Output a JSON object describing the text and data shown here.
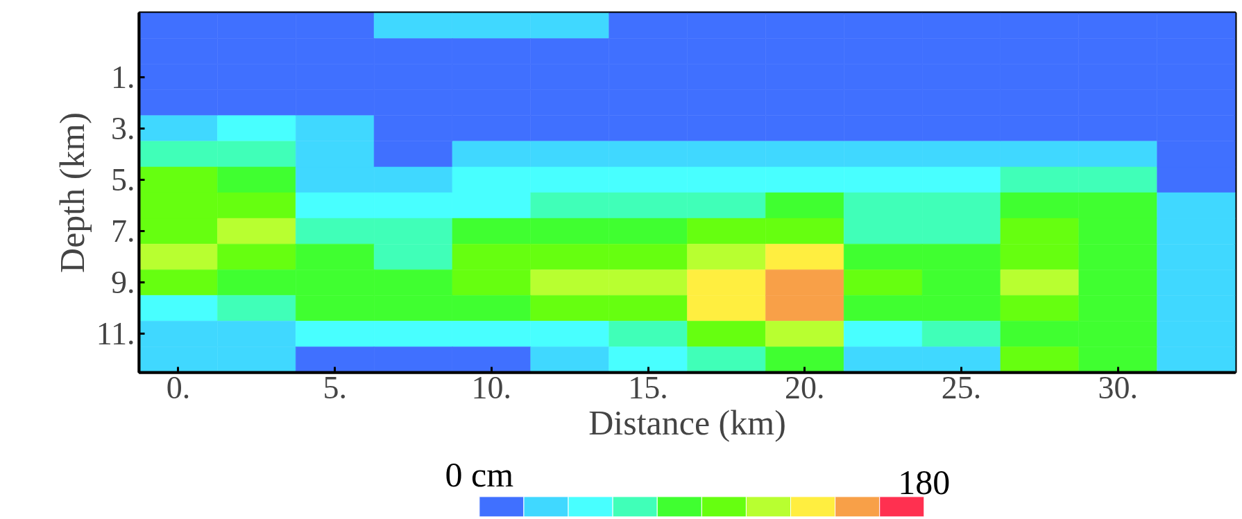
{
  "chart_data": {
    "type": "heatmap",
    "xlabel": "Distance (km)",
    "ylabel": "Depth (km)",
    "categories": [
      "0.",
      null,
      "5.",
      null,
      "10.",
      null,
      "15.",
      null,
      "20.",
      null,
      "25.",
      null,
      "30.",
      null
    ],
    "y_categories": [
      null,
      null,
      "1.",
      null,
      "3.",
      null,
      "5.",
      null,
      "7.",
      null,
      "9.",
      null,
      "11.",
      null
    ],
    "cells": [
      [
        9,
        9,
        9,
        27,
        27,
        27,
        9,
        9,
        9,
        9,
        9,
        9,
        9,
        9
      ],
      [
        9,
        9,
        9,
        9,
        9,
        9,
        9,
        9,
        9,
        9,
        9,
        9,
        9,
        9
      ],
      [
        9,
        9,
        9,
        9,
        9,
        9,
        9,
        9,
        9,
        9,
        9,
        9,
        9,
        9
      ],
      [
        9,
        9,
        9,
        9,
        9,
        9,
        9,
        9,
        9,
        9,
        9,
        9,
        9,
        9
      ],
      [
        27,
        45,
        27,
        9,
        9,
        9,
        9,
        9,
        9,
        9,
        9,
        9,
        9,
        9
      ],
      [
        63,
        63,
        27,
        9,
        27,
        27,
        27,
        27,
        27,
        27,
        27,
        27,
        27,
        9
      ],
      [
        99,
        81,
        27,
        27,
        45,
        45,
        45,
        45,
        45,
        45,
        45,
        63,
        63,
        9
      ],
      [
        99,
        99,
        45,
        45,
        45,
        63,
        63,
        63,
        81,
        63,
        63,
        81,
        81,
        27
      ],
      [
        99,
        117,
        63,
        63,
        81,
        81,
        81,
        99,
        99,
        63,
        63,
        99,
        81,
        27
      ],
      [
        117,
        99,
        81,
        63,
        99,
        99,
        99,
        117,
        135,
        81,
        81,
        99,
        81,
        27
      ],
      [
        99,
        81,
        81,
        81,
        99,
        117,
        117,
        135,
        153,
        99,
        81,
        117,
        81,
        27
      ],
      [
        45,
        63,
        81,
        81,
        81,
        99,
        99,
        135,
        153,
        81,
        81,
        99,
        81,
        27
      ],
      [
        27,
        27,
        45,
        45,
        45,
        45,
        63,
        99,
        117,
        45,
        63,
        81,
        81,
        27
      ],
      [
        27,
        27,
        9,
        9,
        9,
        27,
        45,
        63,
        81,
        27,
        27,
        99,
        81,
        27
      ]
    ],
    "colors": [
      "#4070ff",
      "#40d8ff",
      "#48ffff",
      "#40ffb8",
      "#40ff30",
      "#66ff10",
      "#b8ff30",
      "#ffee40",
      "#f8a048",
      "#ff3050"
    ],
    "clim": [
      0,
      180
    ],
    "cticks": [
      {
        "value": 0,
        "label": "0 cm"
      },
      180
    ]
  }
}
